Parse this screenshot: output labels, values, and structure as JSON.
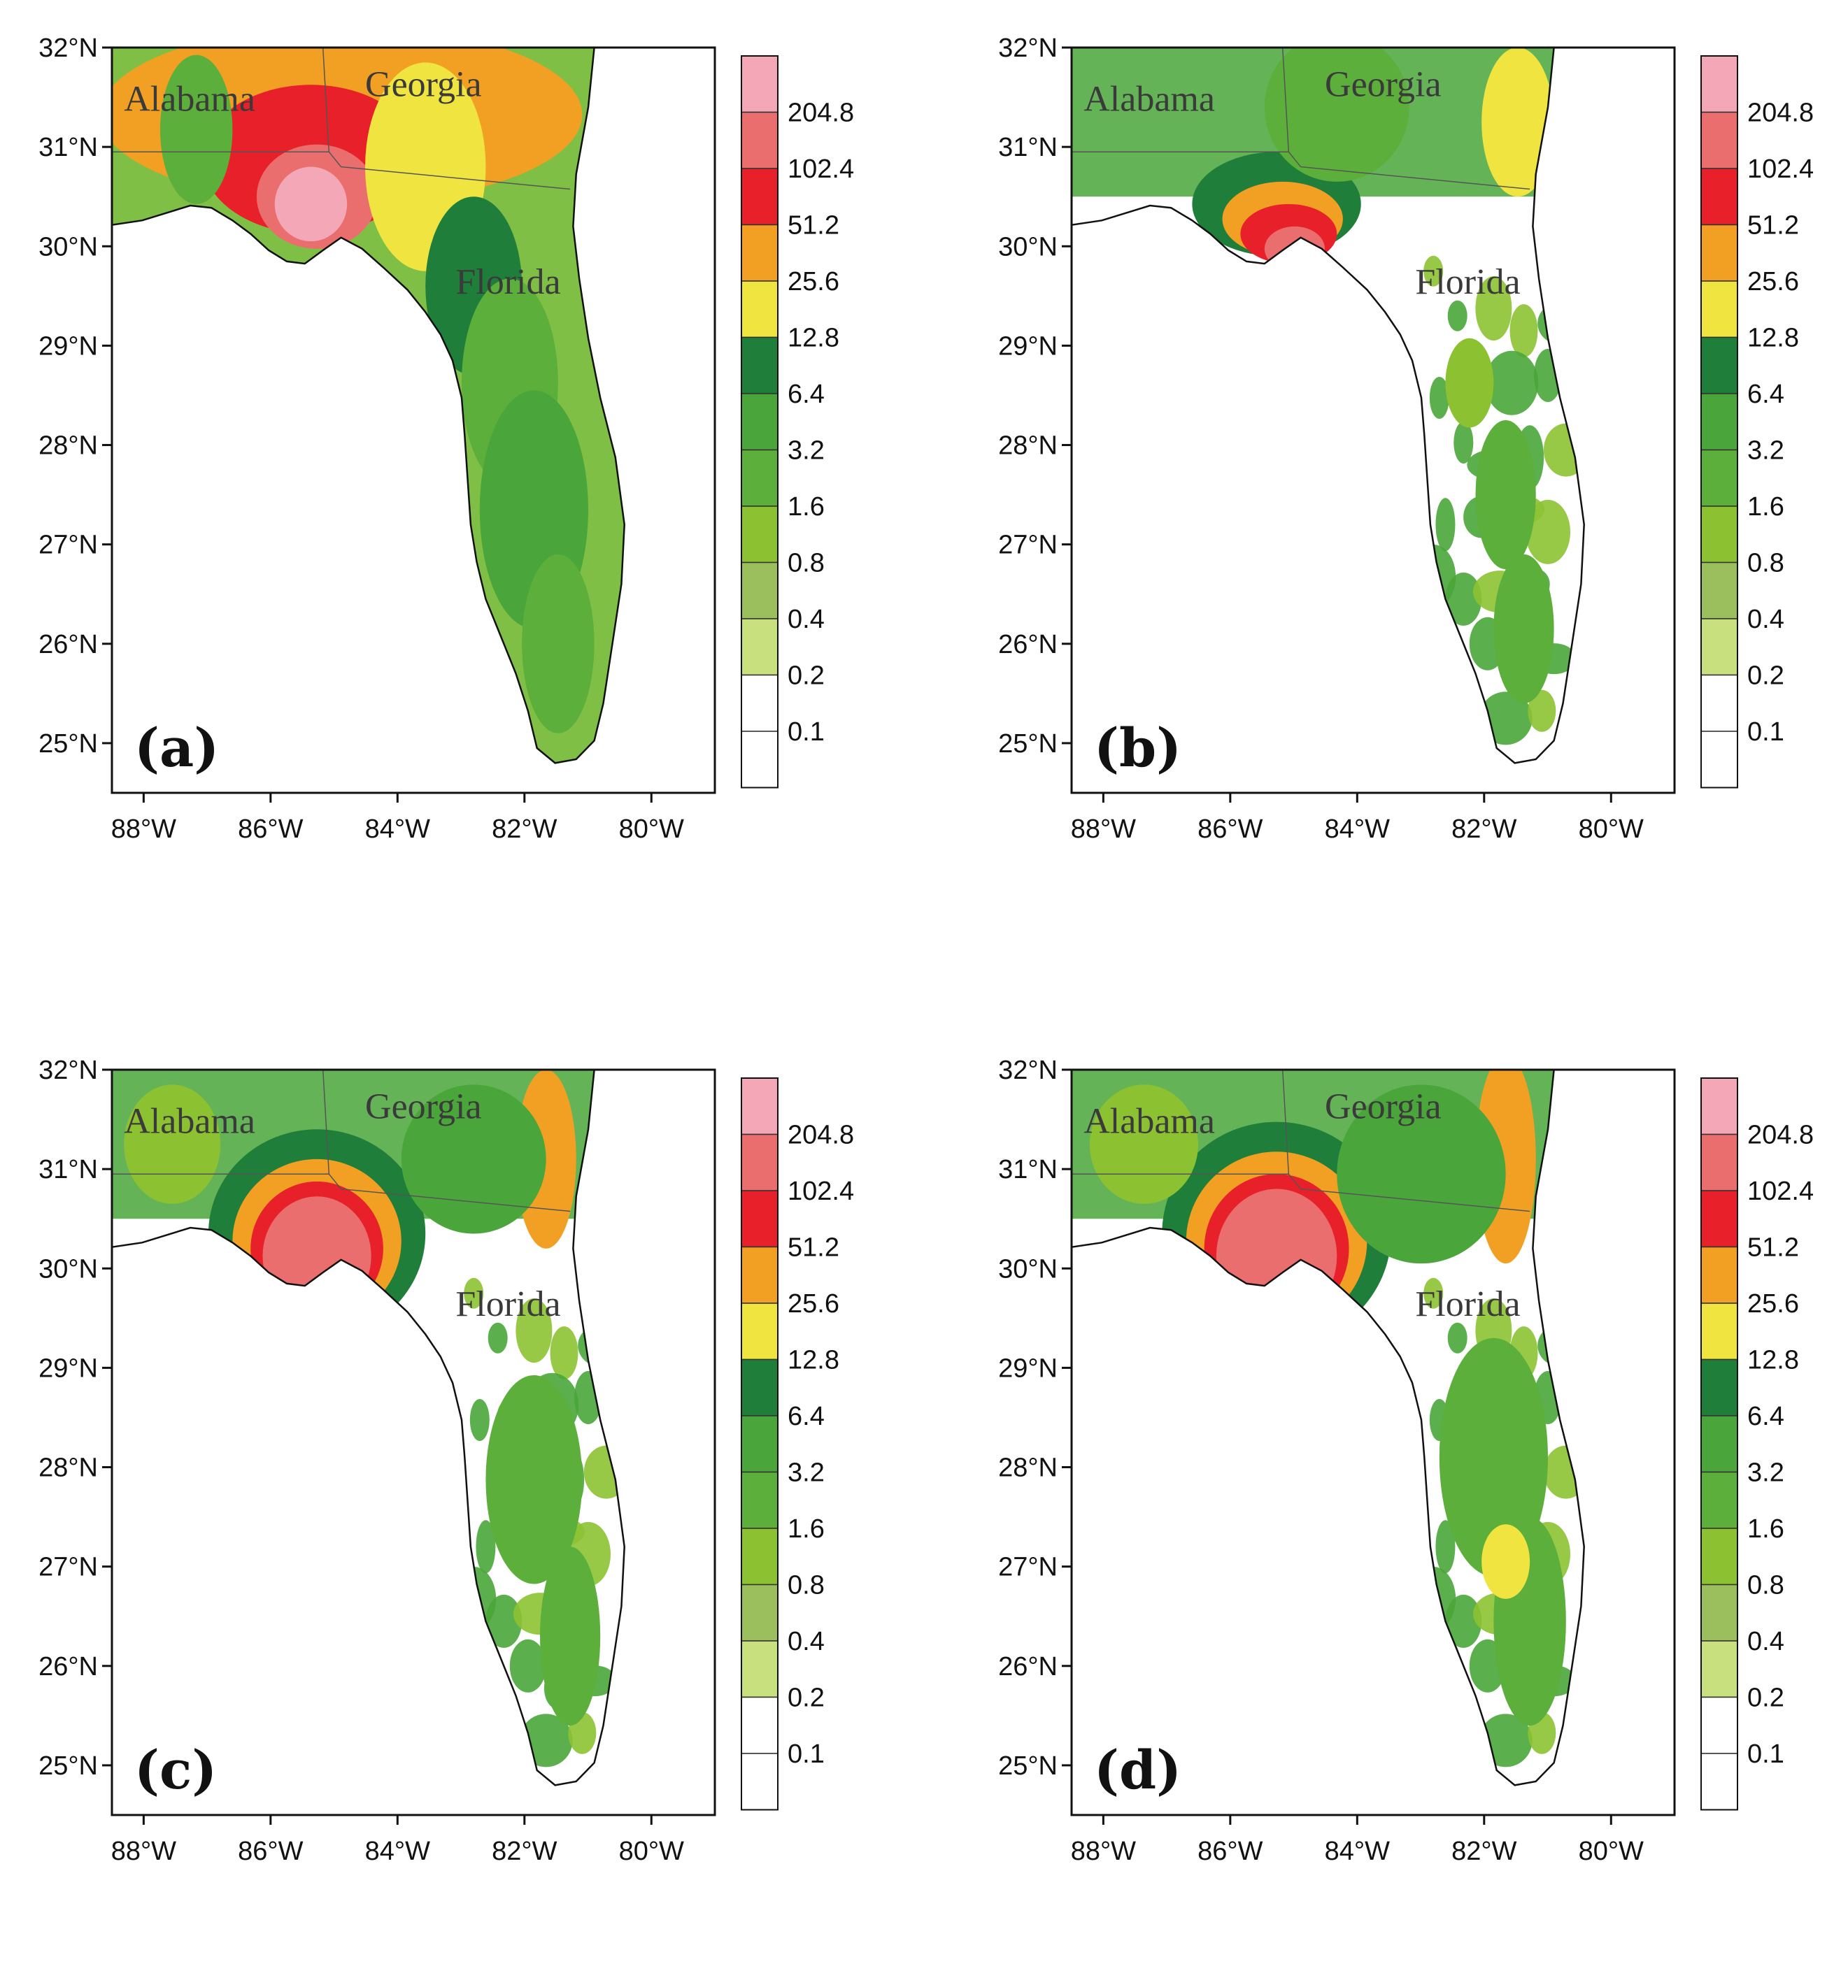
{
  "states": [
    "Alabama",
    "Georgia",
    "Florida"
  ],
  "lat_labels": [
    "32°N",
    "31°N",
    "30°N",
    "29°N",
    "28°N",
    "27°N",
    "26°N",
    "25°N"
  ],
  "lon_labels": [
    "88°W",
    "86°W",
    "84°W",
    "82°W",
    "80°W"
  ],
  "colorbar": {
    "levels": [
      "204.8",
      "102.4",
      "51.2",
      "25.6",
      "12.8",
      "6.4",
      "3.2",
      "1.6",
      "0.8",
      "0.4",
      "0.2",
      "0.1"
    ],
    "colors": [
      "#f4a7b6",
      "#ea6e6e",
      "#e8202a",
      "#f2a024",
      "#f0e440",
      "#1f7f3a",
      "#4aa63a",
      "#5caf3a",
      "#8cc232",
      "#9bbf5c",
      "#c9e07e",
      "#ffffff",
      "#ffffff"
    ]
  },
  "panels": [
    {
      "label": "(a)",
      "lon_range": [
        -88.5,
        -79.0
      ],
      "lat_range": [
        24.5,
        32.0
      ]
    },
    {
      "label": "(b)",
      "lon_range": [
        -88.5,
        -79.0
      ],
      "lat_range": [
        24.5,
        32.0
      ]
    },
    {
      "label": "(c)",
      "lon_range": [
        -88.5,
        -79.0
      ],
      "lat_range": [
        24.5,
        32.0
      ]
    },
    {
      "label": "(d)",
      "lon_range": [
        -88.5,
        -79.0
      ],
      "lat_range": [
        24.5,
        32.0
      ]
    }
  ]
}
